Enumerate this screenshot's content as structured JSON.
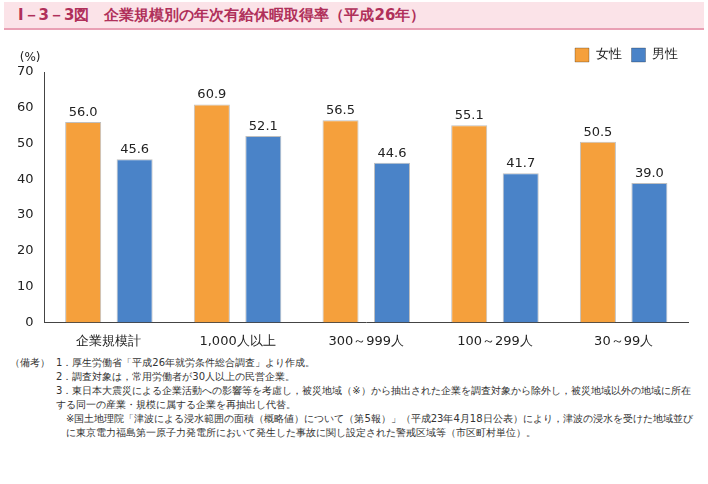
{
  "chart_data": {
    "type": "bar",
    "title": "I－3－3図　企業規模別の年次有給休暇取得率（平成26年）",
    "y_label": "(%)",
    "categories": [
      "企業規模計",
      "1,000人以上",
      "300～999人",
      "100～299人",
      "30～99人"
    ],
    "series": [
      {
        "name": "女性",
        "color": "#f5a03c",
        "values": [
          56.0,
          60.9,
          56.5,
          55.1,
          50.5
        ],
        "value_labels": [
          "56.0",
          "60.9",
          "56.5",
          "55.1",
          "50.5"
        ]
      },
      {
        "name": "男性",
        "color": "#4a83c8",
        "values": [
          45.6,
          52.1,
          44.6,
          41.7,
          39.0
        ],
        "value_labels": [
          "45.6",
          "52.1",
          "44.6",
          "41.7",
          "39.0"
        ]
      }
    ],
    "ylim": [
      0,
      70
    ],
    "yticks": [
      0,
      10,
      20,
      30,
      40,
      50,
      60,
      70
    ],
    "grid": false,
    "legend": "upper right",
    "data_labels": true,
    "note_heading": "（備考）",
    "notes": [
      "1．厚生労働省「平成26年就労条件総合調査」より作成。",
      "2．調査対象は，常用労働者が30人以上の民営企業。",
      "3．東日本大震災による企業活動への影響等を考慮し，被災地域（※）から抽出された企業を調査対象から除外し，被災地域以外の地域に所在する同一の産業・規模に属する企業を再抽出し代替。",
      "※国土地理院「津波による浸水範囲の面積（概略値）について（第5報）」（平成23年4月18日公表）により，津波の浸水を受けた地域並びに東京電力福島第一原子力発電所において発生した事故に関し設定された警戒区域等（市区町村単位）。"
    ]
  }
}
